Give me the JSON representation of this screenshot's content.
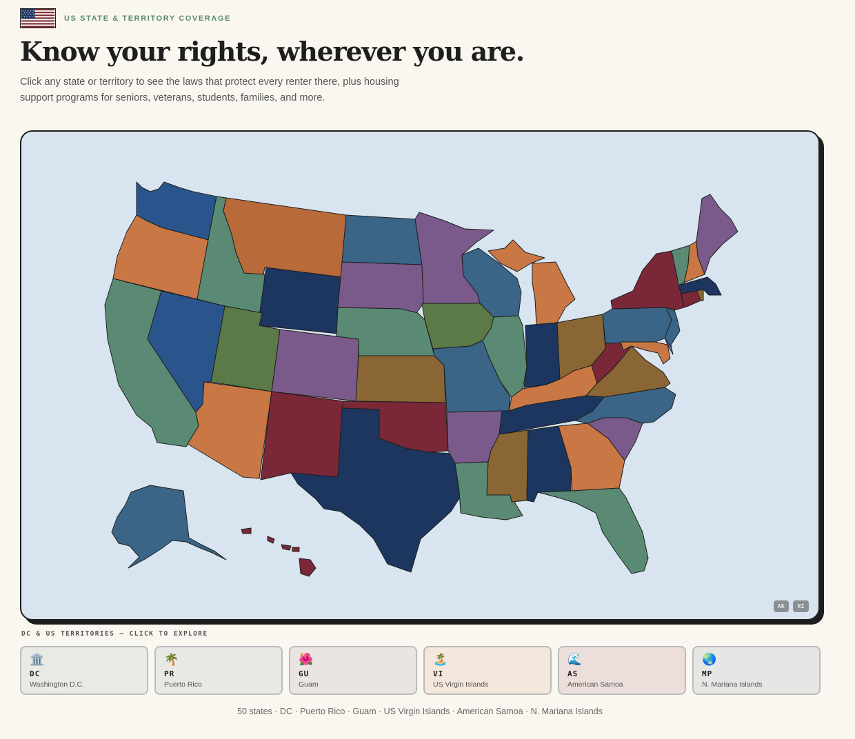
{
  "header": {
    "eyebrow": "US STATE & TERRITORY COVERAGE",
    "headline": "Know your rights, wherever you are.",
    "subhead": "Click any state or territory to see the laws that protect every renter there, plus housing support programs for seniors, veterans, students, families, and more."
  },
  "map": {
    "inset_badges": [
      "AK",
      "HI"
    ],
    "colors": {
      "teal_blue": "#3a6586",
      "royal_blue": "#2a558c",
      "navy": "#1d3660",
      "orange": "#c97845",
      "burnt_orange": "#b86a3a",
      "sea_green": "#5a8a74",
      "olive_green": "#5c7a48",
      "purple": "#7a5a8a",
      "maroon": "#7a2838",
      "brown": "#8a6635",
      "water": "#d8e5f0"
    }
  },
  "territories": {
    "heading": "DC & US TERRITORIES — CLICK TO EXPLORE",
    "items": [
      {
        "code": "DC",
        "name": "Washington D.C.",
        "emoji": "🏛️",
        "bg": "#e8eae3"
      },
      {
        "code": "PR",
        "name": "Puerto Rico",
        "emoji": "🌴",
        "bg": "#e8e8e5"
      },
      {
        "code": "GU",
        "name": "Guam",
        "emoji": "🌺",
        "bg": "#eae5e3"
      },
      {
        "code": "VI",
        "name": "US Virgin Islands",
        "emoji": "🏝️",
        "bg": "#f5e7dc"
      },
      {
        "code": "AS",
        "name": "American Samoa",
        "emoji": "🌊",
        "bg": "#ecdfdb"
      },
      {
        "code": "MP",
        "name": "N. Mariana Islands",
        "emoji": "🌏",
        "bg": "#e6e7e5"
      }
    ]
  },
  "footer": {
    "note": "50 states · DC · Puerto Rico · Guam · US Virgin Islands · American Samoa · N. Mariana Islands"
  }
}
